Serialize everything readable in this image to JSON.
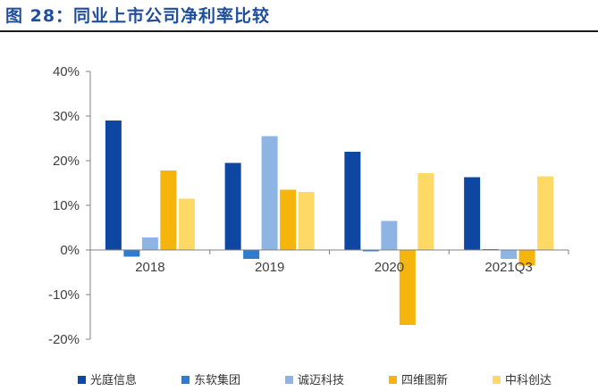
{
  "figure_title": "图 28：同业上市公司净利率比较",
  "chart_data": {
    "type": "bar",
    "title": "同业上市公司净利率比较",
    "xlabel": "",
    "ylabel": "",
    "categories": [
      "2018",
      "2019",
      "2020",
      "2021Q3"
    ],
    "ylim": [
      -20,
      40
    ],
    "yticks": [
      -20,
      -10,
      0,
      10,
      20,
      30,
      40
    ],
    "ytick_labels": [
      "-20%",
      "-10%",
      "0%",
      "10%",
      "20%",
      "30%",
      "40%"
    ],
    "legend_position": "bottom",
    "grid": false,
    "series": [
      {
        "name": "光庭信息",
        "color": "#0d47a1",
        "values": [
          29.0,
          19.5,
          22.0,
          16.3
        ]
      },
      {
        "name": "东软集团",
        "color": "#2e7bd0",
        "values": [
          -1.5,
          -2.0,
          -0.3,
          0.2
        ]
      },
      {
        "name": "诚迈科技",
        "color": "#8db4e2",
        "values": [
          2.8,
          25.5,
          6.5,
          -2.0
        ]
      },
      {
        "name": "四维图新",
        "color": "#f5b50c",
        "values": [
          17.8,
          13.5,
          -16.8,
          -3.5
        ]
      },
      {
        "name": "中科创达",
        "color": "#ffd966",
        "values": [
          11.5,
          13.0,
          17.2,
          16.5
        ]
      }
    ]
  }
}
